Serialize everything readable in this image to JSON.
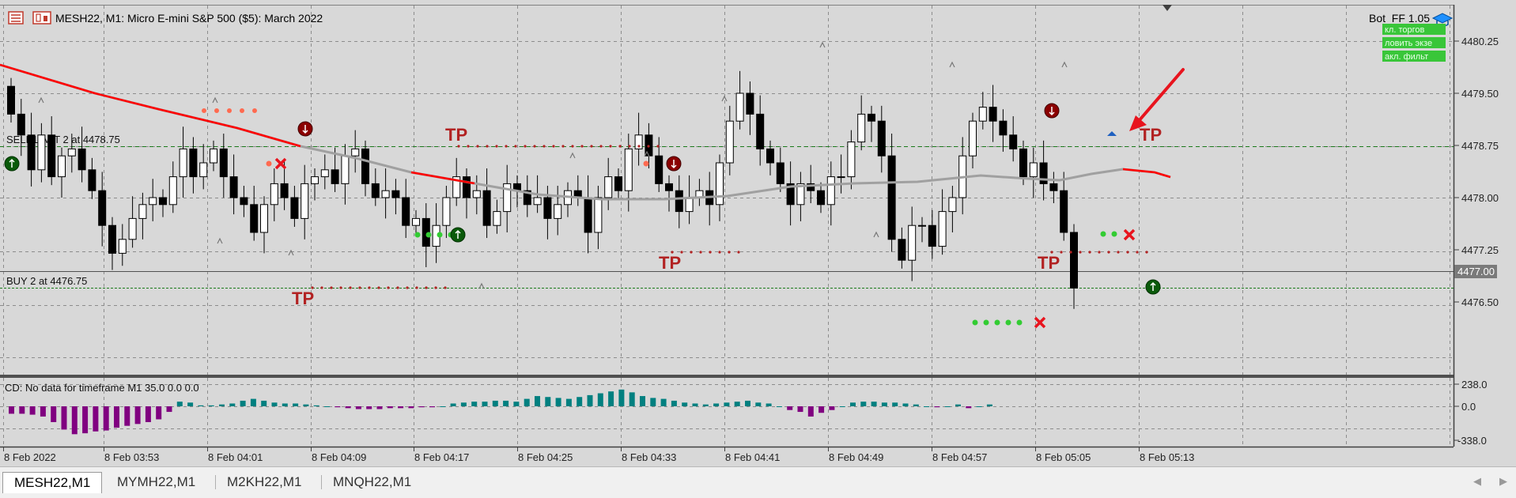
{
  "chart": {
    "header_title": "MESH22, M1:  Micro E-mini S&P 500 ($5): March 2022",
    "bot_label": "Bot_FF 1.05",
    "green_buttons": [
      "кл. торгов",
      "ловить экзе",
      "акл. фильт"
    ],
    "sell_line_label": "SELL LIMIT 2 at 4478.75",
    "buy_line_label": "BUY 2 at 4476.75",
    "tp_label": "TP",
    "current_price": "4477.00",
    "price_axis": [
      "4480.25",
      "4479.50",
      "4478.75",
      "4478.00",
      "4477.25",
      "4476.50"
    ],
    "time_axis": [
      "8 Feb 2022",
      "8 Feb 03:53",
      "8 Feb 04:01",
      "8 Feb 04:09",
      "8 Feb 04:17",
      "8 Feb 04:25",
      "8 Feb 04:33",
      "8 Feb 04:41",
      "8 Feb 04:49",
      "8 Feb 04:57",
      "8 Feb 05:05",
      "8 Feb 05:13"
    ],
    "indicator_label": "CD: No data for timeframe M1 35.0 0.0 0.0",
    "indicator_axis": [
      "238.0",
      "0.0",
      "-338.0"
    ],
    "colors": {
      "up_candle": "#ffffff",
      "down_candle": "#000000",
      "ma_red": "#ff0000",
      "ma_gray": "#a0a0a0",
      "tp": "#b22222",
      "hist_pos": "#008080",
      "hist_neg": "#800080",
      "current_price_bg": "#7a7a7a"
    }
  },
  "tabs": [
    {
      "label": "MESH22,M1",
      "active": true
    },
    {
      "label": "MYMH22,M1",
      "active": false
    },
    {
      "label": "M2KH22,M1",
      "active": false
    },
    {
      "label": "MNQH22,M1",
      "active": false
    }
  ]
}
